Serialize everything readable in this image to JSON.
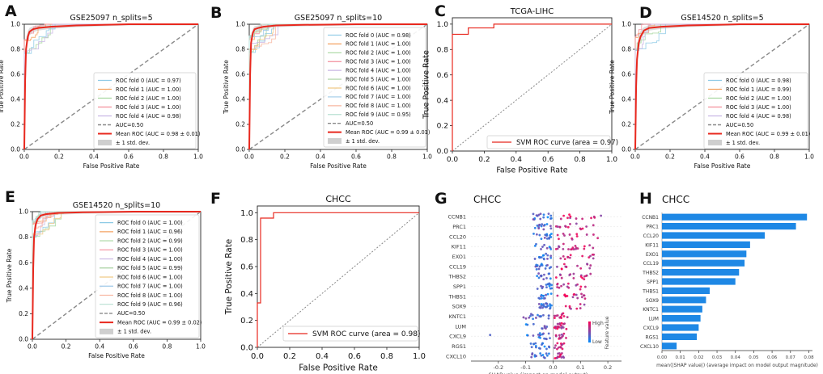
{
  "figure": {
    "panel_letters": [
      "A",
      "B",
      "C",
      "D",
      "E",
      "F",
      "G",
      "H"
    ]
  },
  "colors": {
    "mean": "#e8281e",
    "chance": "#888888",
    "band": "#cfcfcf",
    "svm": "#e8281e",
    "bar": "#1e88e5",
    "shap_high": "#ff0052",
    "shap_low": "#008bfb"
  },
  "chart_data": [
    {
      "id": "A",
      "type": "line",
      "title": "GSE25097 n_splits=5",
      "xlabel": "False Positive Rate",
      "ylabel": "True Positive Rate",
      "xlim": [
        0,
        1
      ],
      "ylim": [
        0,
        1
      ],
      "xticks": [
        "0.0",
        "0.2",
        "0.4",
        "0.6",
        "0.8",
        "1.0"
      ],
      "yticks": [
        "0.0",
        "0.2",
        "0.4",
        "0.6",
        "0.8",
        "1.0"
      ],
      "legend": [
        "ROC fold 0 (AUC = 0.97)",
        "ROC fold 1 (AUC = 1.00)",
        "ROC fold 2 (AUC = 1.00)",
        "ROC fold 3 (AUC = 1.00)",
        "ROC fold 4 (AUC = 0.98)",
        "AUC=0.50",
        "Mean ROC (AUC = 0.98 ± 0.01)",
        "± 1 std. dev."
      ],
      "mean_roc": {
        "x": [
          0,
          0.005,
          0.01,
          0.02,
          0.03,
          0.05,
          0.08,
          0.15,
          0.3,
          0.6,
          1.0
        ],
        "y": [
          0,
          0.55,
          0.8,
          0.9,
          0.94,
          0.96,
          0.97,
          0.98,
          0.99,
          1.0,
          1.0
        ]
      }
    },
    {
      "id": "B",
      "type": "line",
      "title": "GSE25097 n_splits=10",
      "xlabel": "False Positive Rate",
      "ylabel": "True Positive Rate",
      "xlim": [
        0,
        1
      ],
      "ylim": [
        0,
        1
      ],
      "xticks": [
        "0.0",
        "0.2",
        "0.4",
        "0.6",
        "0.8",
        "1.0"
      ],
      "yticks": [
        "0.0",
        "0.2",
        "0.4",
        "0.6",
        "0.8",
        "1.0"
      ],
      "legend": [
        "ROC fold 0 (AUC = 0.98)",
        "ROC fold 1 (AUC = 1.00)",
        "ROC fold 2 (AUC = 1.00)",
        "ROC fold 3 (AUC = 1.00)",
        "ROC fold 4 (AUC = 1.00)",
        "ROC fold 5 (AUC = 1.00)",
        "ROC fold 6 (AUC = 1.00)",
        "ROC fold 7 (AUC = 1.00)",
        "ROC fold 8 (AUC = 1.00)",
        "ROC fold 9 (AUC = 0.95)",
        "AUC=0.50",
        "Mean ROC (AUC = 0.99 ± 0.01)",
        "± 1 std. dev."
      ],
      "mean_roc": {
        "x": [
          0,
          0.005,
          0.01,
          0.02,
          0.03,
          0.05,
          0.08,
          0.15,
          0.3,
          0.6,
          1.0
        ],
        "y": [
          0,
          0.6,
          0.85,
          0.93,
          0.96,
          0.97,
          0.98,
          0.99,
          0.995,
          1.0,
          1.0
        ]
      }
    },
    {
      "id": "C",
      "type": "line",
      "title": "TCGA-LIHC",
      "xlabel": "False Positive Rate",
      "ylabel": "True Positive Rate",
      "xlim": [
        0,
        1
      ],
      "ylim": [
        0,
        1.05
      ],
      "xticks": [
        "0.0",
        "0.2",
        "0.4",
        "0.6",
        "0.8",
        "1.0"
      ],
      "yticks": [
        "0.0",
        "0.2",
        "0.4",
        "0.6",
        "0.8",
        "1.0"
      ],
      "legend": [
        "SVM ROC curve (area = 0.97)"
      ],
      "roc": {
        "x": [
          0,
          0,
          0.1,
          0.1,
          0.26,
          0.26,
          1.0
        ],
        "y": [
          0,
          0.92,
          0.92,
          0.97,
          0.97,
          1.0,
          1.0
        ]
      }
    },
    {
      "id": "D",
      "type": "line",
      "title": "GSE14520 n_splits=5",
      "xlabel": "False Positive Rate",
      "ylabel": "True Positive Rate",
      "xlim": [
        0,
        1
      ],
      "ylim": [
        0,
        1
      ],
      "xticks": [
        "0.0",
        "0.2",
        "0.4",
        "0.6",
        "0.8",
        "1.0"
      ],
      "yticks": [
        "0.0",
        "0.2",
        "0.4",
        "0.6",
        "0.8",
        "1.0"
      ],
      "legend": [
        "ROC fold 0 (AUC = 0.98)",
        "ROC fold 1 (AUC = 0.99)",
        "ROC fold 2 (AUC = 1.00)",
        "ROC fold 3 (AUC = 1.00)",
        "ROC fold 4 (AUC = 0.98)",
        "AUC=0.50",
        "Mean ROC (AUC = 0.99 ± 0.01)",
        "± 1 std. dev."
      ],
      "mean_roc": {
        "x": [
          0,
          0.005,
          0.01,
          0.02,
          0.03,
          0.05,
          0.08,
          0.15,
          0.3,
          0.6,
          1.0
        ],
        "y": [
          0,
          0.5,
          0.72,
          0.85,
          0.9,
          0.95,
          0.97,
          0.98,
          0.99,
          1.0,
          1.0
        ]
      }
    },
    {
      "id": "E",
      "type": "line",
      "title": "GSE14520 n_splits=10",
      "xlabel": "False Positive Rate",
      "ylabel": "True Positive Rate",
      "xlim": [
        0,
        1
      ],
      "ylim": [
        0,
        1
      ],
      "xticks": [
        "0.0",
        "0.2",
        "0.4",
        "0.6",
        "0.8",
        "1.0"
      ],
      "yticks": [
        "0.0",
        "0.2",
        "0.4",
        "0.6",
        "0.8",
        "1.0"
      ],
      "legend": [
        "ROC fold 0 (AUC = 1.00)",
        "ROC fold 1 (AUC = 0.96)",
        "ROC fold 2 (AUC = 0.99)",
        "ROC fold 3 (AUC = 1.00)",
        "ROC fold 4 (AUC = 1.00)",
        "ROC fold 5 (AUC = 0.99)",
        "ROC fold 6 (AUC = 1.00)",
        "ROC fold 7 (AUC = 1.00)",
        "ROC fold 8 (AUC = 1.00)",
        "ROC fold 9 (AUC = 0.96)",
        "AUC=0.50",
        "Mean ROC (AUC = 0.99 ± 0.02)",
        "± 1 std. dev."
      ],
      "mean_roc": {
        "x": [
          0,
          0.005,
          0.01,
          0.02,
          0.03,
          0.05,
          0.08,
          0.15,
          0.3,
          0.6,
          1.0
        ],
        "y": [
          0,
          0.55,
          0.8,
          0.9,
          0.94,
          0.97,
          0.98,
          0.99,
          0.995,
          1.0,
          1.0
        ]
      }
    },
    {
      "id": "F",
      "type": "line",
      "title": "CHCC",
      "xlabel": "False Positive Rate",
      "ylabel": "True Positive Rate",
      "xlim": [
        0,
        1
      ],
      "ylim": [
        0,
        1.05
      ],
      "xticks": [
        "0.0",
        "0.2",
        "0.4",
        "0.6",
        "0.8",
        "1.0"
      ],
      "yticks": [
        "0.0",
        "0.2",
        "0.4",
        "0.6",
        "0.8",
        "1.0"
      ],
      "legend": [
        "SVM ROC curve (area = 0.98)"
      ],
      "roc": {
        "x": [
          0,
          0,
          0.02,
          0.02,
          0.1,
          0.1,
          1.0
        ],
        "y": [
          0,
          0.33,
          0.33,
          0.96,
          0.96,
          1.0,
          1.0
        ]
      }
    },
    {
      "id": "G",
      "type": "scatter",
      "title": "CHCC",
      "xlabel": "SHAP value (impact on model output)",
      "xlim": [
        -0.3,
        0.25
      ],
      "xticks": [
        -0.2,
        -0.1,
        0.0,
        0.1,
        0.2
      ],
      "xtick_labels": [
        "-0.2",
        "-0.1",
        "0.0",
        "0.1",
        "0.2"
      ],
      "features": [
        "CCNB1",
        "PRC1",
        "CCL20",
        "KIF11",
        "EXO1",
        "CCL19",
        "THBS2",
        "SPP1",
        "THBS1",
        "SOX9",
        "KNTC1",
        "LUM",
        "CXCL9",
        "RGS1",
        "CXCL10"
      ],
      "colorbar": {
        "high": "High",
        "low": "Low",
        "label": "Feature value"
      }
    },
    {
      "id": "H",
      "type": "bar",
      "title": "CHCC",
      "xlabel": "mean(|SHAP value|) (average impact on model output magnitude)",
      "xlim": [
        0,
        0.082
      ],
      "xticks": [
        0,
        0.01,
        0.02,
        0.03,
        0.04,
        0.05,
        0.06,
        0.07,
        0.08
      ],
      "xtick_labels": [
        "0.00",
        "0.01",
        "0.02",
        "0.03",
        "0.04",
        "0.05",
        "0.06",
        "0.07",
        "0.08"
      ],
      "categories": [
        "CCNB1",
        "PRC1",
        "CCL20",
        "KIF11",
        "EXO1",
        "CCL19",
        "THBS2",
        "SPP1",
        "THBS1",
        "SOX9",
        "KNTC1",
        "LUM",
        "CXCL9",
        "RGS1",
        "CXCL10"
      ],
      "values": [
        0.079,
        0.073,
        0.056,
        0.048,
        0.046,
        0.045,
        0.042,
        0.04,
        0.026,
        0.024,
        0.022,
        0.021,
        0.02,
        0.019,
        0.008
      ]
    }
  ]
}
